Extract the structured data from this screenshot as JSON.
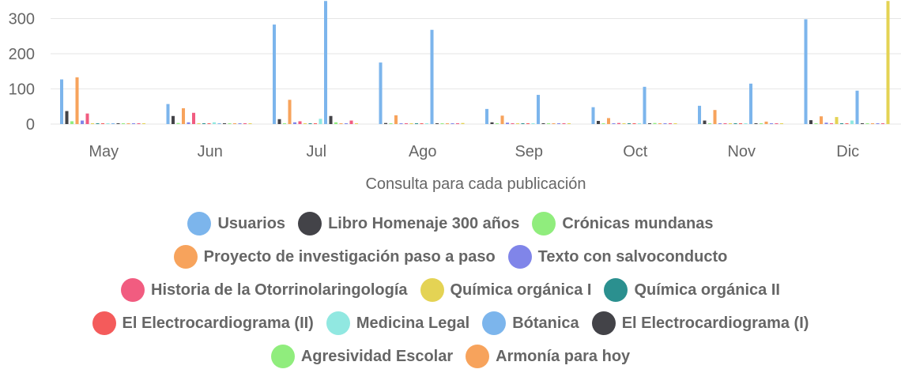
{
  "chart_data": {
    "type": "bar",
    "title": "",
    "xlabel": "Consulta para cada publicación",
    "ylabel": "",
    "ylim": [
      0,
      350
    ],
    "yticks": [
      0,
      100,
      200,
      300
    ],
    "categories": [
      "May",
      "Jun",
      "Jul",
      "Ago",
      "Sep",
      "Oct",
      "Nov",
      "Dic"
    ],
    "legend_position": "bottom",
    "grid": true,
    "series": [
      {
        "name": "Usuarios",
        "color": "#7cb5ec",
        "values": [
          127,
          57,
          283,
          175,
          43,
          48,
          52,
          298
        ]
      },
      {
        "name": "Libro Homenaje 300 años",
        "color": "#434348",
        "values": [
          37,
          23,
          14,
          3,
          5,
          9,
          10,
          11
        ]
      },
      {
        "name": "Crónicas mundanas",
        "color": "#90ed7d",
        "values": [
          8,
          3,
          0,
          0,
          0,
          0,
          0,
          0
        ]
      },
      {
        "name": "Proyecto de investigación paso a paso",
        "color": "#f7a35c",
        "values": [
          133,
          45,
          69,
          25,
          24,
          17,
          40,
          22
        ]
      },
      {
        "name": "Texto con salvoconducto",
        "color": "#8085e9",
        "values": [
          10,
          5,
          5,
          0,
          4,
          0,
          0,
          4
        ]
      },
      {
        "name": "Historia de la Otorrinolaringología",
        "color": "#f15c80",
        "values": [
          30,
          32,
          8,
          0,
          0,
          3,
          0,
          0
        ]
      },
      {
        "name": "Química orgánica I",
        "color": "#e4d354",
        "values": [
          0,
          0,
          0,
          0,
          0,
          0,
          0,
          20
        ]
      },
      {
        "name": "Química orgánica II",
        "color": "#2b908f",
        "values": [
          0,
          0,
          0,
          0,
          0,
          0,
          0,
          0
        ]
      },
      {
        "name": "El Electrocardiograma (II)",
        "color": "#f45b5b",
        "values": [
          0,
          0,
          0,
          0,
          0,
          0,
          0,
          0
        ]
      },
      {
        "name": "Medicina Legal",
        "color": "#91e8e1",
        "values": [
          0,
          5,
          15,
          0,
          0,
          0,
          0,
          10
        ]
      },
      {
        "name": "Bótanica",
        "color": "#7cb5ec",
        "values": [
          0,
          0,
          360,
          268,
          83,
          106,
          115,
          95
        ]
      },
      {
        "name": "El Electrocardiograma (I)",
        "color": "#434348",
        "values": [
          0,
          0,
          23,
          0,
          0,
          0,
          0,
          0
        ]
      },
      {
        "name": "Agresividad Escolar",
        "color": "#90ed7d",
        "values": [
          0,
          0,
          5,
          0,
          0,
          3,
          0,
          0
        ]
      },
      {
        "name": "Armonía para hoy",
        "color": "#f7a35c",
        "values": [
          0,
          0,
          0,
          0,
          0,
          0,
          7,
          0
        ]
      },
      {
        "name": "",
        "color": "#8085e9",
        "values": [
          0,
          0,
          0,
          0,
          0,
          2,
          0,
          0
        ]
      },
      {
        "name": "",
        "color": "#f15c80",
        "values": [
          0,
          0,
          10,
          0,
          0,
          2,
          0,
          0
        ]
      },
      {
        "name": "",
        "color": "#e4d354",
        "values": [
          0,
          0,
          0,
          3,
          0,
          0,
          0,
          360
        ]
      }
    ]
  }
}
